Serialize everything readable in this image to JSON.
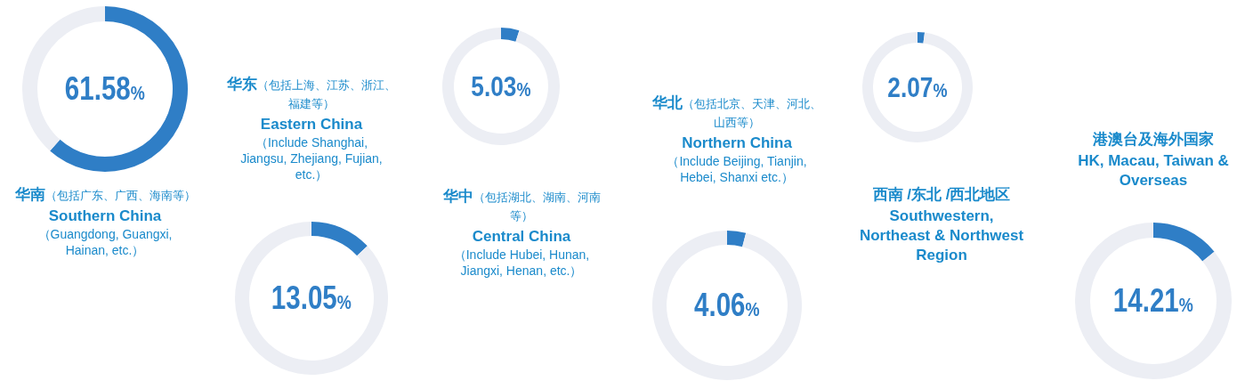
{
  "chart_data": [
    {
      "type": "donut",
      "title": "华南（包括广东、广西、海南等）",
      "subtitle": "Southern China",
      "annotations": [
        "（Guangdong, Guangxi, Hainan, etc.）"
      ],
      "categories": [
        null,
        null
      ],
      "values": [
        61.58,
        38.42
      ],
      "colors": [
        "#2f7ec6",
        "#eceef4"
      ],
      "value_labels": [
        "61.58%",
        null
      ]
    },
    {
      "type": "donut",
      "title": "华东（包括上海、江苏、浙江、福建等）",
      "subtitle": "Eastern China",
      "annotations": [
        "（Include Shanghai, Jiangsu, Zhejiang, Fujian, etc.）"
      ],
      "categories": [
        null,
        null
      ],
      "values": [
        13.05,
        86.95
      ],
      "colors": [
        "#2f7ec6",
        "#eceef4"
      ],
      "value_labels": [
        "13.05%",
        null
      ]
    },
    {
      "type": "donut",
      "title": "华中（包括湖北、湖南、河南等）",
      "subtitle": "Central China",
      "annotations": [
        "（Include Hubei, Hunan, Jiangxi, Henan, etc.）"
      ],
      "categories": [
        null,
        null
      ],
      "values": [
        5.03,
        94.97
      ],
      "colors": [
        "#2f7ec6",
        "#eceef4"
      ],
      "value_labels": [
        "5.03%",
        null
      ]
    },
    {
      "type": "donut",
      "title": "华北（包括北京、天津、河北、山西等）",
      "subtitle": "Northern China",
      "annotations": [
        "（Include Beijing, Tianjin, Hebei, Shanxi etc.）"
      ],
      "categories": [
        null,
        null
      ],
      "values": [
        4.06,
        95.94
      ],
      "colors": [
        "#2f7ec6",
        "#eceef4"
      ],
      "value_labels": [
        "4.06%",
        null
      ]
    },
    {
      "type": "donut",
      "title": "西南 /东北 /西北地区",
      "subtitle": "Southwestern, Northeast & Northwest Region",
      "categories": [
        null,
        null
      ],
      "values": [
        2.07,
        97.93
      ],
      "colors": [
        "#2f7ec6",
        "#eceef4"
      ],
      "value_labels": [
        "2.07%",
        null
      ]
    },
    {
      "type": "donut",
      "title": "港澳台及海外国家",
      "subtitle": "HK, Macau, Taiwan & Overseas",
      "categories": [
        null,
        null
      ],
      "values": [
        14.21,
        85.79
      ],
      "colors": [
        "#2f7ec6",
        "#eceef4"
      ],
      "value_labels": [
        "14.21%",
        null
      ]
    }
  ]
}
